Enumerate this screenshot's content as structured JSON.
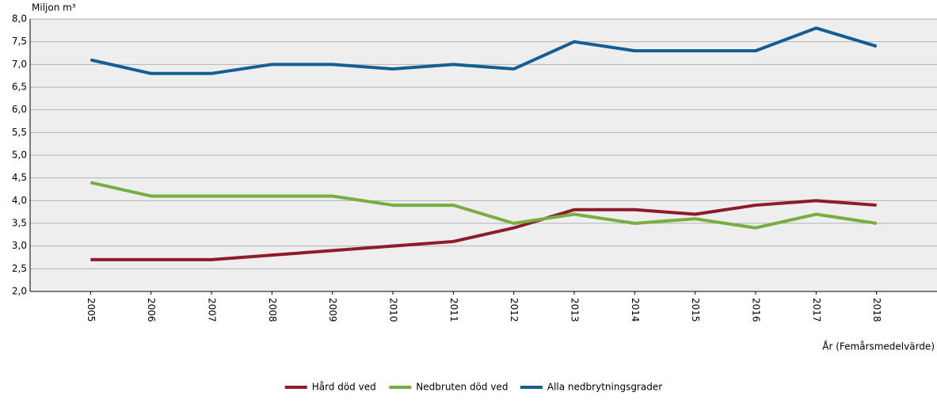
{
  "chart_data": {
    "type": "line",
    "y_label": "Miljon m³",
    "x_label": "År (Femårsmedelvärde)",
    "categories": [
      "2005",
      "2006",
      "2007",
      "2008",
      "2009",
      "2010",
      "2011",
      "2012",
      "2013",
      "2014",
      "2015",
      "2016",
      "2017",
      "2018"
    ],
    "series": [
      {
        "name": "Hård död ved",
        "color": "#8c1c2c",
        "values": [
          2.7,
          2.7,
          2.7,
          2.8,
          2.9,
          3.0,
          3.1,
          3.4,
          3.8,
          3.8,
          3.7,
          3.9,
          4.0,
          3.9
        ]
      },
      {
        "name": "Nedbruten död ved",
        "color": "#78ad40",
        "values": [
          4.4,
          4.1,
          4.1,
          4.1,
          4.1,
          3.9,
          3.9,
          3.5,
          3.7,
          3.5,
          3.6,
          3.4,
          3.7,
          3.5
        ]
      },
      {
        "name": "Alla nedbrytningsgrader",
        "color": "#135e92",
        "values": [
          7.1,
          6.8,
          6.8,
          7.0,
          7.0,
          6.9,
          7.0,
          6.9,
          7.5,
          7.3,
          7.3,
          7.3,
          7.8,
          7.4
        ]
      }
    ],
    "ylim": [
      2.0,
      8.0
    ],
    "yticks": [
      {
        "value": 2.0,
        "label": "2,0"
      },
      {
        "value": 2.5,
        "label": "2,5"
      },
      {
        "value": 3.0,
        "label": "3,0"
      },
      {
        "value": 3.5,
        "label": "3,5"
      },
      {
        "value": 4.0,
        "label": "4,0"
      },
      {
        "value": 4.5,
        "label": "4,5"
      },
      {
        "value": 5.0,
        "label": "5,0"
      },
      {
        "value": 5.5,
        "label": "5,5"
      },
      {
        "value": 6.0,
        "label": "6,0"
      },
      {
        "value": 6.5,
        "label": "6,5"
      },
      {
        "value": 7.0,
        "label": "7,0"
      },
      {
        "value": 7.5,
        "label": "7,5"
      },
      {
        "value": 8.0,
        "label": "8,0"
      }
    ],
    "grid": true,
    "legend": "bottom"
  }
}
